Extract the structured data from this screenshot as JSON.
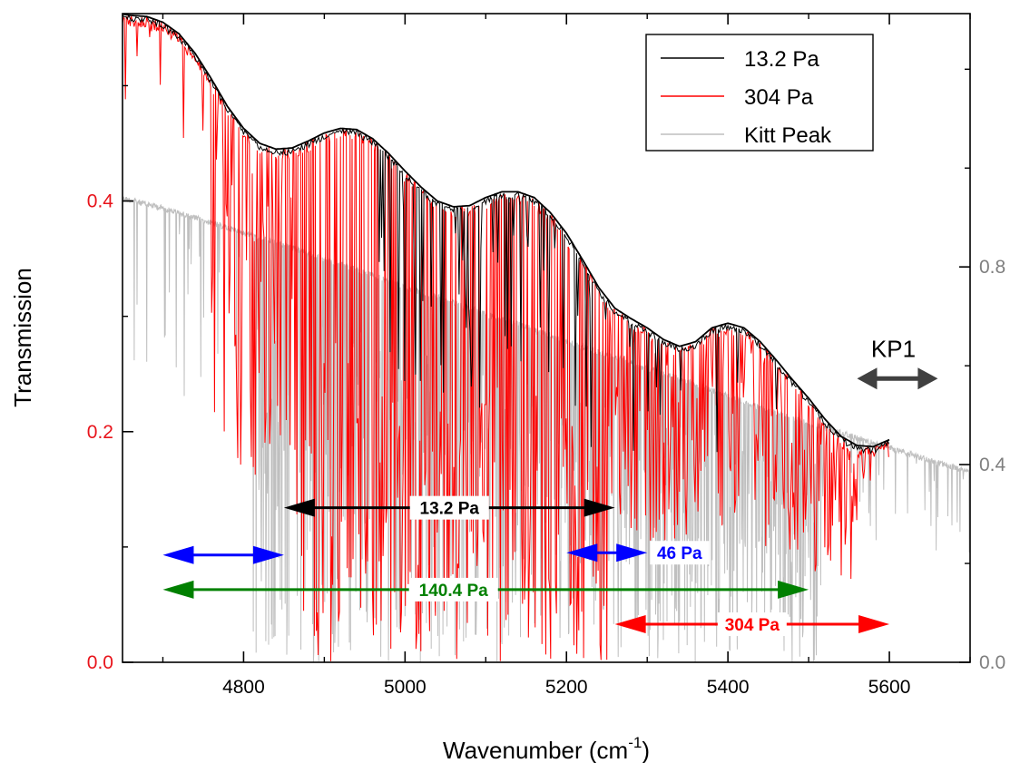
{
  "chart_data": {
    "type": "line",
    "xlabel": "Wavenumber (cm",
    "xlabel_sup": "-1",
    "xlabel_end": ")",
    "ylabel": "Transmission",
    "xlim": [
      4650,
      5700
    ],
    "ylim_left": [
      0.0,
      0.5625
    ],
    "ylim_right": [
      0.0,
      1.3125
    ],
    "x_ticks": [
      4800,
      5000,
      5200,
      5400,
      5600
    ],
    "y_left_ticks": [
      0.0,
      0.2,
      0.4
    ],
    "y_right_ticks": [
      0.0,
      0.4,
      0.8
    ],
    "grid": false,
    "legend_position": "top-right",
    "colors": {
      "left_axis": "#e8141b",
      "right_axis": "#7f7f7f"
    },
    "series": [
      {
        "name": "13.2 Pa",
        "color": "#000000",
        "axis": "left",
        "envelope": [
          [
            4650,
            0.562
          ],
          [
            4660,
            0.561
          ],
          [
            4680,
            0.56
          ],
          [
            4700,
            0.555
          ],
          [
            4720,
            0.545
          ],
          [
            4740,
            0.528
          ],
          [
            4760,
            0.506
          ],
          [
            4780,
            0.482
          ],
          [
            4800,
            0.463
          ],
          [
            4820,
            0.45
          ],
          [
            4840,
            0.445
          ],
          [
            4860,
            0.446
          ],
          [
            4880,
            0.452
          ],
          [
            4900,
            0.459
          ],
          [
            4920,
            0.463
          ],
          [
            4940,
            0.462
          ],
          [
            4960,
            0.454
          ],
          [
            4980,
            0.441
          ],
          [
            5000,
            0.426
          ],
          [
            5020,
            0.412
          ],
          [
            5040,
            0.4
          ],
          [
            5060,
            0.395
          ],
          [
            5080,
            0.396
          ],
          [
            5100,
            0.403
          ],
          [
            5120,
            0.408
          ],
          [
            5140,
            0.408
          ],
          [
            5160,
            0.403
          ],
          [
            5180,
            0.39
          ],
          [
            5200,
            0.372
          ],
          [
            5220,
            0.349
          ],
          [
            5240,
            0.325
          ],
          [
            5260,
            0.307
          ],
          [
            5280,
            0.298
          ],
          [
            5300,
            0.29
          ],
          [
            5320,
            0.28
          ],
          [
            5340,
            0.274
          ],
          [
            5360,
            0.278
          ],
          [
            5380,
            0.29
          ],
          [
            5400,
            0.294
          ],
          [
            5420,
            0.29
          ],
          [
            5440,
            0.278
          ],
          [
            5460,
            0.262
          ],
          [
            5480,
            0.245
          ],
          [
            5500,
            0.229
          ],
          [
            5520,
            0.211
          ],
          [
            5540,
            0.196
          ],
          [
            5560,
            0.188
          ],
          [
            5580,
            0.187
          ],
          [
            5600,
            0.193
          ]
        ],
        "absorption_band": [
          4800,
          5500
        ]
      },
      {
        "name": "304 Pa",
        "color": "#ff0000",
        "axis": "left",
        "envelope": [
          [
            4650,
            0.562
          ],
          [
            4660,
            0.561
          ],
          [
            4680,
            0.56
          ],
          [
            4700,
            0.555
          ],
          [
            4720,
            0.545
          ],
          [
            4740,
            0.528
          ],
          [
            4760,
            0.506
          ],
          [
            4780,
            0.482
          ],
          [
            4800,
            0.463
          ],
          [
            4820,
            0.45
          ],
          [
            4840,
            0.445
          ],
          [
            4860,
            0.446
          ],
          [
            4880,
            0.452
          ],
          [
            4900,
            0.459
          ],
          [
            4920,
            0.463
          ],
          [
            4940,
            0.462
          ],
          [
            4960,
            0.454
          ],
          [
            4980,
            0.441
          ],
          [
            5000,
            0.426
          ],
          [
            5020,
            0.412
          ],
          [
            5040,
            0.4
          ],
          [
            5060,
            0.395
          ],
          [
            5080,
            0.396
          ],
          [
            5100,
            0.403
          ],
          [
            5120,
            0.408
          ],
          [
            5140,
            0.408
          ],
          [
            5160,
            0.403
          ],
          [
            5180,
            0.39
          ],
          [
            5200,
            0.372
          ],
          [
            5220,
            0.349
          ],
          [
            5240,
            0.325
          ],
          [
            5260,
            0.307
          ],
          [
            5280,
            0.298
          ],
          [
            5300,
            0.29
          ],
          [
            5320,
            0.28
          ],
          [
            5340,
            0.274
          ],
          [
            5360,
            0.278
          ],
          [
            5380,
            0.29
          ],
          [
            5400,
            0.294
          ],
          [
            5420,
            0.29
          ],
          [
            5440,
            0.278
          ],
          [
            5460,
            0.262
          ],
          [
            5480,
            0.245
          ],
          [
            5500,
            0.229
          ],
          [
            5520,
            0.211
          ],
          [
            5540,
            0.196
          ],
          [
            5560,
            0.188
          ],
          [
            5580,
            0.187
          ],
          [
            5600,
            0.193
          ]
        ],
        "absorption_band": [
          4760,
          5560
        ]
      },
      {
        "name": "Kitt Peak",
        "color": "#bfbfbf",
        "axis": "right",
        "envelope": [
          [
            4650,
            0.945
          ],
          [
            4700,
            0.925
          ],
          [
            4750,
            0.9
          ],
          [
            4800,
            0.875
          ],
          [
            4850,
            0.85
          ],
          [
            4900,
            0.822
          ],
          [
            4950,
            0.795
          ],
          [
            5000,
            0.765
          ],
          [
            5050,
            0.74
          ],
          [
            5100,
            0.71
          ],
          [
            5150,
            0.685
          ],
          [
            5200,
            0.655
          ],
          [
            5250,
            0.628
          ],
          [
            5300,
            0.6
          ],
          [
            5350,
            0.575
          ],
          [
            5400,
            0.545
          ],
          [
            5450,
            0.515
          ],
          [
            5500,
            0.49
          ],
          [
            5550,
            0.465
          ],
          [
            5600,
            0.44
          ],
          [
            5650,
            0.415
          ],
          [
            5700,
            0.39
          ]
        ],
        "absorption_band": [
          4650,
          5700
        ]
      }
    ],
    "legend": [
      "13.2 Pa",
      "304 Pa",
      "Kitt Peak"
    ],
    "annotations": [
      {
        "label": "13.2 Pa",
        "color": "#000000",
        "x_range": [
          4850,
          5260
        ],
        "y": 0.134,
        "label_x": 5055
      },
      {
        "label": "46 Pa",
        "color": "#0000ff",
        "x_range": [
          4700,
          4850
        ],
        "y": 0.093,
        "label_x": null
      },
      {
        "label": "46 Pa",
        "color": "#0000ff",
        "x_range": [
          5200,
          5300
        ],
        "y": 0.095,
        "label_x": 5340
      },
      {
        "label": "140.4 Pa",
        "color": "#008000",
        "x_range": [
          4700,
          5500
        ],
        "y": 0.063,
        "label_x": 5060
      },
      {
        "label": "304 Pa",
        "color": "#ff0000",
        "x_range": [
          5260,
          5600
        ],
        "y": 0.033,
        "label_x": 5430
      },
      {
        "label": "KP1",
        "color": "#404040",
        "x_range": [
          5560,
          5660
        ],
        "y": 0.246,
        "label_x": 5605
      }
    ]
  }
}
